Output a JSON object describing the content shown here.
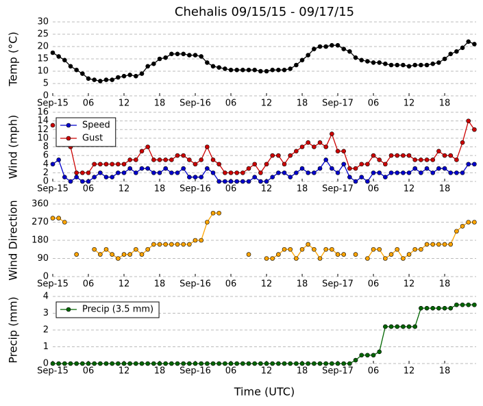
{
  "chart_data": [
    {
      "type": "line",
      "title": "Chehalis 09/15/15 - 09/17/15",
      "ylabel": "Temp (°C)",
      "grid": true,
      "x": [
        0,
        1,
        2,
        3,
        4,
        5,
        6,
        7,
        8,
        9,
        10,
        11,
        12,
        13,
        14,
        15,
        16,
        17,
        18,
        19,
        20,
        21,
        22,
        23,
        24,
        25,
        26,
        27,
        28,
        29,
        30,
        31,
        32,
        33,
        34,
        35,
        36,
        37,
        38,
        39,
        40,
        41,
        42,
        43,
        44,
        45,
        46,
        47,
        48,
        49,
        50,
        51,
        52,
        53,
        54,
        55,
        56,
        57,
        58,
        59,
        60,
        61,
        62,
        63,
        64,
        65,
        66,
        67,
        68,
        69,
        70,
        71
      ],
      "xlim": [
        0,
        71.3
      ],
      "xticks": [
        {
          "value": 0,
          "label": "Sep-15"
        },
        {
          "value": 6,
          "label": "06"
        },
        {
          "value": 12,
          "label": "12"
        },
        {
          "value": 18,
          "label": "18"
        },
        {
          "value": 24,
          "label": "Sep-16"
        },
        {
          "value": 30,
          "label": "06"
        },
        {
          "value": 36,
          "label": "12"
        },
        {
          "value": 42,
          "label": "18"
        },
        {
          "value": 48,
          "label": "Sep-17"
        },
        {
          "value": 54,
          "label": "06"
        },
        {
          "value": 60,
          "label": "12"
        },
        {
          "value": 66,
          "label": "18"
        }
      ],
      "ylim": [
        0,
        30
      ],
      "yticks": [
        0,
        5,
        10,
        15,
        20,
        25,
        30
      ],
      "series": [
        {
          "name": "Temp",
          "color": "#000000",
          "values": [
            17.5,
            16,
            14.5,
            12,
            10.5,
            9,
            7,
            6.5,
            6,
            6.5,
            6.5,
            7.5,
            8,
            8.5,
            8,
            9,
            12,
            13,
            15,
            15.5,
            17,
            17,
            17,
            16.5,
            16.5,
            16,
            13.5,
            12,
            11.5,
            11,
            10.5,
            10.5,
            10.5,
            10.5,
            10.5,
            10,
            10,
            10.5,
            10.5,
            10.5,
            11,
            12.5,
            14.5,
            16.5,
            19,
            20,
            20,
            20.5,
            20.5,
            19,
            18,
            15.5,
            14.5,
            14,
            13.5,
            13.5,
            13,
            12.5,
            12.5,
            12.5,
            12,
            12.5,
            12.5,
            12.5,
            13,
            13.5,
            15,
            17,
            18,
            19.5,
            22,
            21
          ]
        }
      ]
    },
    {
      "type": "line",
      "ylabel": "Wind (mph)",
      "grid": true,
      "legend": "upper left",
      "x": [
        0,
        1,
        2,
        3,
        4,
        5,
        6,
        7,
        8,
        9,
        10,
        11,
        12,
        13,
        14,
        15,
        16,
        17,
        18,
        19,
        20,
        21,
        22,
        23,
        24,
        25,
        26,
        27,
        28,
        29,
        30,
        31,
        32,
        33,
        34,
        35,
        36,
        37,
        38,
        39,
        40,
        41,
        42,
        43,
        44,
        45,
        46,
        47,
        48,
        49,
        50,
        51,
        52,
        53,
        54,
        55,
        56,
        57,
        58,
        59,
        60,
        61,
        62,
        63,
        64,
        65,
        66,
        67,
        68,
        69,
        70,
        71
      ],
      "xlim": [
        0,
        71.3
      ],
      "xticks": [
        {
          "value": 0,
          "label": "Sep-15"
        },
        {
          "value": 6,
          "label": "06"
        },
        {
          "value": 12,
          "label": "12"
        },
        {
          "value": 18,
          "label": "18"
        },
        {
          "value": 24,
          "label": "Sep-16"
        },
        {
          "value": 30,
          "label": "06"
        },
        {
          "value": 36,
          "label": "12"
        },
        {
          "value": 42,
          "label": "18"
        },
        {
          "value": 48,
          "label": "Sep-17"
        },
        {
          "value": 54,
          "label": "06"
        },
        {
          "value": 60,
          "label": "12"
        },
        {
          "value": 66,
          "label": "18"
        }
      ],
      "ylim": [
        0,
        16
      ],
      "yticks": [
        0,
        2,
        4,
        6,
        8,
        10,
        12,
        14,
        16
      ],
      "series": [
        {
          "name": "Speed",
          "color": "#0000cc",
          "values": [
            4,
            5,
            1,
            0,
            1,
            0,
            0,
            1,
            2,
            1,
            1,
            2,
            2,
            3,
            2,
            3,
            3,
            2,
            2,
            3,
            2,
            2,
            3,
            1,
            1,
            1,
            3,
            2,
            0,
            0,
            0,
            0,
            0,
            0,
            1,
            0,
            0,
            1,
            2,
            2,
            1,
            2,
            3,
            2,
            2,
            3,
            5,
            3,
            2,
            4,
            1,
            0,
            1,
            0,
            2,
            2,
            1,
            2,
            2,
            2,
            2,
            3,
            2,
            3,
            2,
            3,
            3,
            2,
            2,
            2,
            4,
            4
          ]
        },
        {
          "name": "Gust",
          "color": "#cc0000",
          "values": [
            13,
            null,
            null,
            8,
            2,
            2,
            2,
            4,
            4,
            4,
            4,
            4,
            4,
            5,
            5,
            7,
            8,
            5,
            5,
            5,
            5,
            6,
            6,
            5,
            4,
            5,
            8,
            5,
            4,
            2,
            2,
            2,
            2,
            3,
            4,
            2,
            4,
            6,
            6,
            4,
            6,
            7,
            8,
            9,
            8,
            9,
            8,
            11,
            7,
            7,
            3,
            3,
            4,
            4,
            6,
            5,
            4,
            6,
            6,
            6,
            6,
            5,
            5,
            5,
            5,
            7,
            6,
            6,
            5,
            9,
            14,
            12
          ]
        }
      ]
    },
    {
      "type": "line",
      "ylabel": "Wind Direction",
      "grid": true,
      "x": [
        0,
        1,
        2,
        3,
        4,
        5,
        6,
        7,
        8,
        9,
        10,
        11,
        12,
        13,
        14,
        15,
        16,
        17,
        18,
        19,
        20,
        21,
        22,
        23,
        24,
        25,
        26,
        27,
        28,
        29,
        30,
        31,
        32,
        33,
        34,
        35,
        36,
        37,
        38,
        39,
        40,
        41,
        42,
        43,
        44,
        45,
        46,
        47,
        48,
        49,
        50,
        51,
        52,
        53,
        54,
        55,
        56,
        57,
        58,
        59,
        60,
        61,
        62,
        63,
        64,
        65,
        66,
        67,
        68,
        69,
        70,
        71
      ],
      "xlim": [
        0,
        71.3
      ],
      "xticks": [
        {
          "value": 0,
          "label": "Sep-15"
        },
        {
          "value": 6,
          "label": "06"
        },
        {
          "value": 12,
          "label": "12"
        },
        {
          "value": 18,
          "label": "18"
        },
        {
          "value": 24,
          "label": "Sep-16"
        },
        {
          "value": 30,
          "label": "06"
        },
        {
          "value": 36,
          "label": "12"
        },
        {
          "value": 42,
          "label": "18"
        },
        {
          "value": 48,
          "label": "Sep-17"
        },
        {
          "value": 54,
          "label": "06"
        },
        {
          "value": 60,
          "label": "12"
        },
        {
          "value": 66,
          "label": "18"
        }
      ],
      "ylim": [
        0,
        360
      ],
      "yticks": [
        0,
        90,
        180,
        270,
        360
      ],
      "series": [
        {
          "name": "Wind Direction",
          "color": "#ffa500",
          "values": [
            290,
            290,
            270,
            null,
            110,
            null,
            null,
            135,
            110,
            135,
            110,
            90,
            110,
            110,
            135,
            110,
            135,
            160,
            160,
            160,
            160,
            160,
            160,
            160,
            180,
            180,
            270,
            315,
            315,
            null,
            null,
            null,
            null,
            110,
            null,
            null,
            90,
            90,
            110,
            135,
            135,
            90,
            135,
            160,
            135,
            90,
            135,
            135,
            110,
            110,
            null,
            110,
            null,
            90,
            135,
            135,
            90,
            110,
            135,
            90,
            110,
            135,
            135,
            160,
            160,
            160,
            160,
            160,
            225,
            250,
            270,
            270
          ]
        }
      ]
    },
    {
      "type": "line",
      "ylabel": "Precip (mm)",
      "xlabel": "Time (UTC)",
      "grid": true,
      "legend": "upper left",
      "x": [
        0,
        1,
        2,
        3,
        4,
        5,
        6,
        7,
        8,
        9,
        10,
        11,
        12,
        13,
        14,
        15,
        16,
        17,
        18,
        19,
        20,
        21,
        22,
        23,
        24,
        25,
        26,
        27,
        28,
        29,
        30,
        31,
        32,
        33,
        34,
        35,
        36,
        37,
        38,
        39,
        40,
        41,
        42,
        43,
        44,
        45,
        46,
        47,
        48,
        49,
        50,
        51,
        52,
        53,
        54,
        55,
        56,
        57,
        58,
        59,
        60,
        61,
        62,
        63,
        64,
        65,
        66,
        67,
        68,
        69,
        70,
        71
      ],
      "xlim": [
        0,
        71.3
      ],
      "xticks": [
        {
          "value": 0,
          "label": "Sep-15"
        },
        {
          "value": 6,
          "label": "06"
        },
        {
          "value": 12,
          "label": "12"
        },
        {
          "value": 18,
          "label": "18"
        },
        {
          "value": 24,
          "label": "Sep-16"
        },
        {
          "value": 30,
          "label": "06"
        },
        {
          "value": 36,
          "label": "12"
        },
        {
          "value": 42,
          "label": "18"
        },
        {
          "value": 48,
          "label": "Sep-17"
        },
        {
          "value": 54,
          "label": "06"
        },
        {
          "value": 60,
          "label": "12"
        },
        {
          "value": 66,
          "label": "18"
        }
      ],
      "ylim": [
        0,
        4
      ],
      "yticks": [
        0,
        1,
        2,
        3,
        4
      ],
      "series": [
        {
          "name": "Precip (3.5 mm)",
          "color": "#006600",
          "values": [
            0,
            0,
            0,
            0,
            0,
            0,
            0,
            0,
            0,
            0,
            0,
            0,
            0,
            0,
            0,
            0,
            0,
            0,
            0,
            0,
            0,
            0,
            0,
            0,
            0,
            0,
            0,
            0,
            0,
            0,
            0,
            0,
            0,
            0,
            0,
            0,
            0,
            0,
            0,
            0,
            0,
            0,
            0,
            0,
            0,
            0,
            0,
            0,
            0,
            0,
            0,
            0.2,
            0.5,
            0.5,
            0.5,
            0.7,
            2.2,
            2.2,
            2.2,
            2.2,
            2.2,
            2.2,
            3.3,
            3.3,
            3.3,
            3.3,
            3.3,
            3.3,
            3.5,
            3.5,
            3.5,
            3.5
          ]
        }
      ]
    }
  ]
}
